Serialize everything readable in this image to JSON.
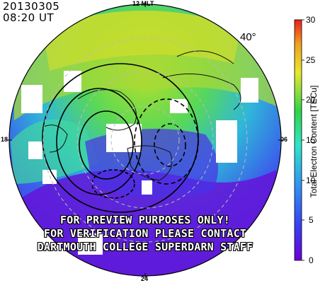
{
  "header": {
    "date": "20130305",
    "time": "08:20  UT"
  },
  "mlt_labels": {
    "top": "12 MLT",
    "left": "18",
    "right": "06",
    "bottom": "24"
  },
  "latitude_label": "40°",
  "colorbar": {
    "title": "Total Electron Content [TECu]",
    "ticks": [
      "30",
      "25",
      "20",
      "15",
      "10",
      "5",
      "0"
    ],
    "min": 0,
    "max": 30,
    "colors": [
      "#6a00d8",
      "#3a3ef2",
      "#2f9cf2",
      "#2ee6c8",
      "#2ed44a",
      "#e8e82e",
      "#f0a020",
      "#e81e1e"
    ]
  },
  "notice": {
    "line1": "FOR PREVIEW PURPOSES ONLY!",
    "line2": "FOR VERIFICATION PLEASE CONTACT",
    "line3": "DARTMOUTH COLLEGE SUPERDARN STAFF"
  }
}
